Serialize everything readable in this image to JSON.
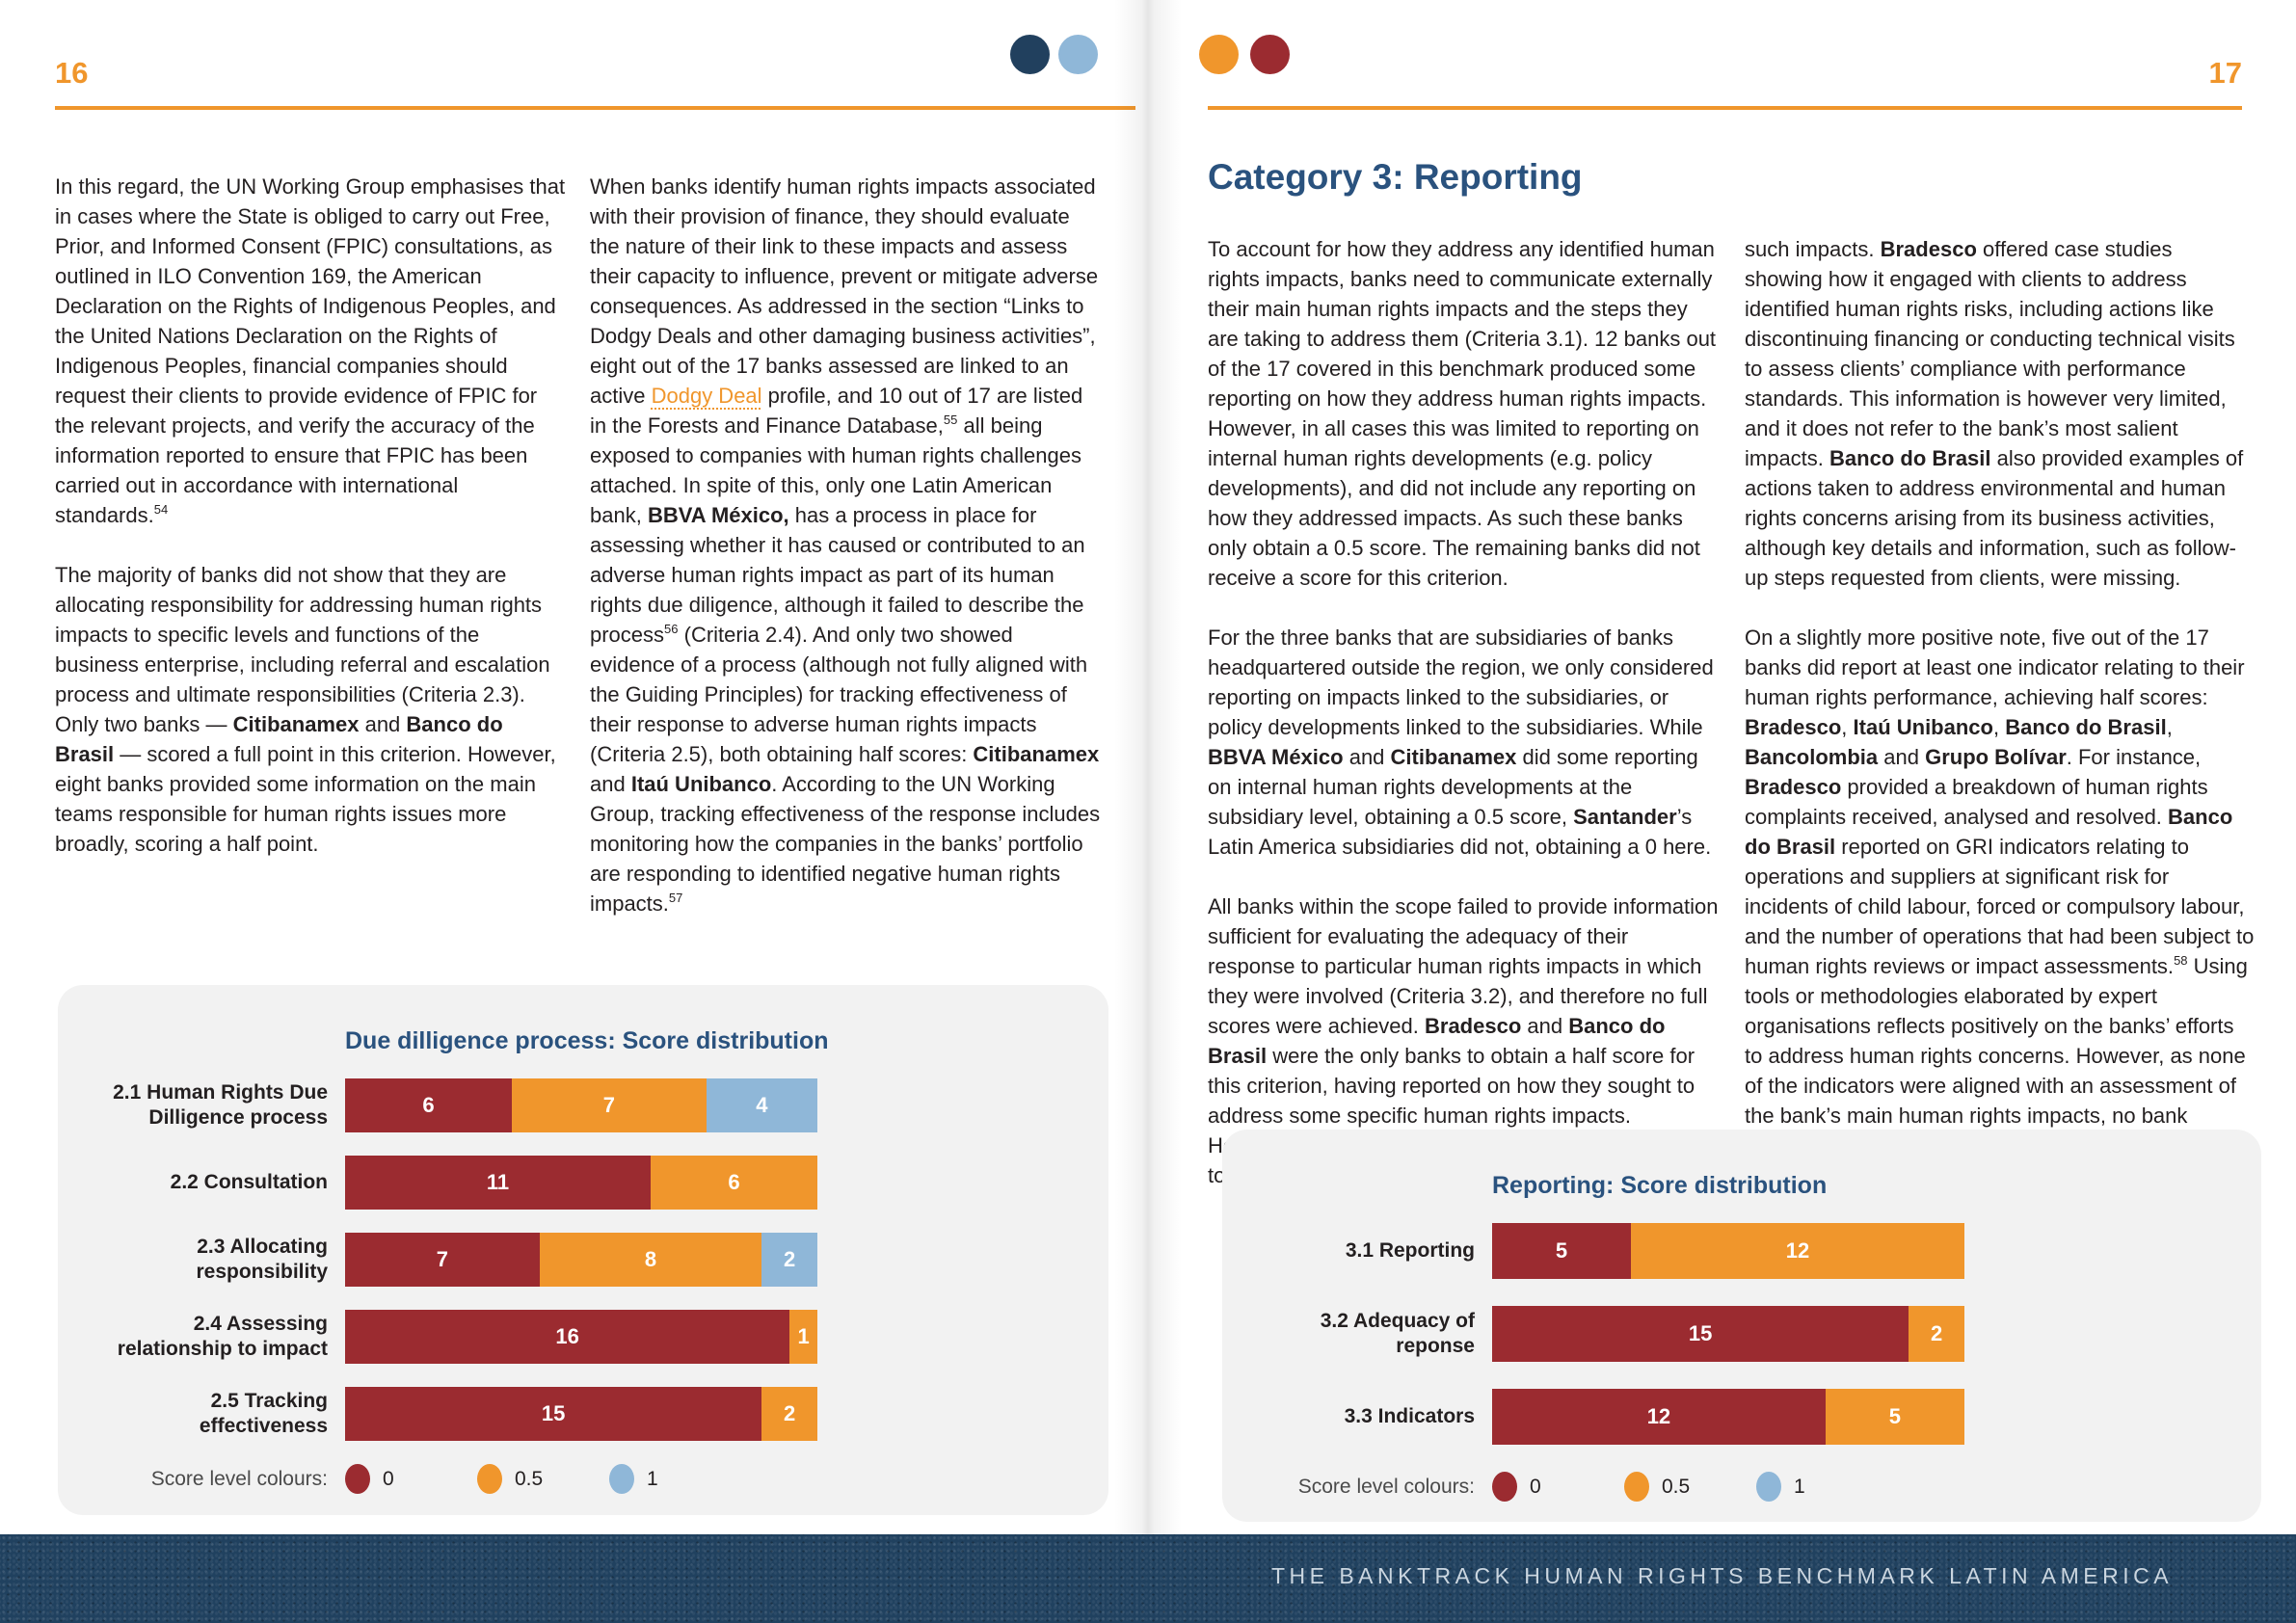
{
  "colors": {
    "accent_orange": "#F0962C",
    "heading_blue": "#2A527E",
    "footer_navy": "#20415F",
    "panel_gray": "#F2F2F2",
    "body_text": "#231F20",
    "footer_text_color": "#CBD6E0",
    "scores": {
      "0": "#9B2B30",
      "0.5": "#F0962C",
      "1": "#8FB7D8"
    },
    "dots": [
      "#21405E",
      "#8FB7D8",
      "#F0962C",
      "#9B2B30"
    ]
  },
  "footer": {
    "title": "THE BANKTRACK HUMAN RIGHTS BENCHMARK LATIN AMERICA"
  },
  "page_left": {
    "number": "16",
    "columns": [
      [
        [
          {
            "t": "In this regard, the UN Working Group emphasises that in cases where the State is obliged to carry out Free, Prior, and Informed Consent (FPIC) consultations, as outlined in ILO Convention 169, the American Declaration on the Rights of Indigenous Peoples, and the United Nations Declaration on the Rights of Indigenous Peoples, financial companies should request their clients to provide evidence of FPIC for the relevant projects, and verify the accuracy of the information reported to ensure that FPIC has been carried out in accordance with international standards."
          },
          {
            "t": "54",
            "sup": true
          }
        ],
        [
          {
            "t": "The majority of banks did not show that they are allocating responsibility for addressing human rights impacts to specific levels and functions of the business enterprise, including referral and escalation process and ultimate responsibilities (Criteria 2.3). Only two banks — "
          },
          {
            "t": "Citibanamex",
            "b": true
          },
          {
            "t": " and "
          },
          {
            "t": "Banco do Brasil",
            "b": true
          },
          {
            "t": " — scored a full point in this criterion. However, eight banks provided some information on the main teams responsible for human rights issues more broadly, scoring a half point."
          }
        ]
      ],
      [
        [
          {
            "t": "When banks identify human rights impacts associated with their provision of finance, they should evaluate the nature of their link to these impacts and assess their capacity to influence, prevent or mitigate adverse consequences. As addressed in the section “Links to Dodgy Deals and other damaging business activities”, eight out of the 17 banks assessed are linked to an active "
          },
          {
            "t": "Dodgy Deal",
            "link": true
          },
          {
            "t": " profile, and 10 out of 17 are listed in the Forests and Finance Database,"
          },
          {
            "t": "55",
            "sup": true
          },
          {
            "t": " all being exposed to companies with human rights challenges attached. In spite of this, only one Latin American bank, "
          },
          {
            "t": "BBVA México,",
            "b": true
          },
          {
            "t": " has a process in place for assessing whether it has caused or contributed to an adverse human rights impact as part of its human rights due diligence, although it failed to describe the process"
          },
          {
            "t": "56",
            "sup": true
          },
          {
            "t": " (Criteria 2.4). And only two showed evidence of a process (although not fully aligned with the Guiding Principles) for tracking effectiveness of their response to adverse human rights impacts (Criteria 2.5), both obtaining half scores: "
          },
          {
            "t": "Citibanamex",
            "b": true
          },
          {
            "t": " and "
          },
          {
            "t": "Itaú Unibanco",
            "b": true
          },
          {
            "t": ". According to the UN Working Group, tracking effectiveness of the response includes monitoring how the companies in the banks’ portfolio are responding to identified negative human rights impacts."
          },
          {
            "t": "57",
            "sup": true
          }
        ]
      ]
    ]
  },
  "page_right": {
    "number": "17",
    "heading": "Category 3: Reporting",
    "columns": [
      [
        [
          {
            "t": "To account for how they address any identified human rights impacts, banks need to communicate externally their main human rights impacts and the steps they are taking to address them (Criteria 3.1). 12 banks out of the 17 covered in this benchmark produced some reporting on how they address human rights impacts. However, in all cases this was limited to reporting on internal human rights developments (e.g. policy developments), and did not include any reporting on how they addressed impacts. As such these banks only obtain a 0.5 score. The remaining banks did not receive a score for this criterion."
          }
        ],
        [
          {
            "t": "For the three banks that are subsidiaries of banks headquartered outside the region, we only considered reporting on impacts linked to the subsidiaries, or policy developments linked to the subsidiaries. While "
          },
          {
            "t": "BBVA México",
            "b": true
          },
          {
            "t": " and "
          },
          {
            "t": "Citibanamex",
            "b": true
          },
          {
            "t": " did some reporting on internal human rights developments at the subsidiary level, obtaining a 0.5 score, "
          },
          {
            "t": "Santander",
            "b": true
          },
          {
            "t": "’s Latin America subsidiaries did not, obtaining a 0 here."
          }
        ],
        [
          {
            "t": "All banks within the scope failed to provide information sufficient for evaluating the adequacy of their response to particular human rights impacts in which they were involved (Criteria 3.2), and therefore no full scores were achieved. "
          },
          {
            "t": "Bradesco",
            "b": true
          },
          {
            "t": " and "
          },
          {
            "t": "Banco do Brasil",
            "b": true
          },
          {
            "t": " were the only banks to obtain a half score for this criterion, having reported on how they sought to address some specific human rights impacts. However, the information provided was not sufficient to assess the adequacy of their responses to"
          }
        ]
      ],
      [
        [
          {
            "t": "such impacts. "
          },
          {
            "t": "Bradesco",
            "b": true
          },
          {
            "t": " offered case studies showing how it engaged with clients to address identified human rights risks, including actions like discontinuing financing or conducting technical visits to assess clients’ compliance with performance standards. This information is however very limited, and it does not refer to the bank’s most salient impacts. "
          },
          {
            "t": "Banco do Brasil",
            "b": true
          },
          {
            "t": " also provided examples of actions taken to address environmental and human rights concerns arising from its business activities, although key details and information, such as follow-up steps requested from clients, were missing."
          }
        ],
        [
          {
            "t": "On a slightly more positive note, five out of the 17 banks did report at least one indicator relating to their human rights performance, achieving half scores: "
          },
          {
            "t": "Bradesco",
            "b": true
          },
          {
            "t": ", "
          },
          {
            "t": "Itaú Unibanco",
            "b": true
          },
          {
            "t": ", "
          },
          {
            "t": "Banco do Brasil",
            "b": true
          },
          {
            "t": ", "
          },
          {
            "t": "Bancolombia",
            "b": true
          },
          {
            "t": " and "
          },
          {
            "t": "Grupo Bolívar",
            "b": true
          },
          {
            "t": ". For instance, "
          },
          {
            "t": "Bradesco",
            "b": true
          },
          {
            "t": " provided a breakdown of human rights complaints received, analysed and resolved. "
          },
          {
            "t": "Banco do Brasil",
            "b": true
          },
          {
            "t": " reported on GRI indicators relating to operations and suppliers at significant risk for incidents of child labour, forced or compulsory labour, and the number of operations that had been subject to human rights reviews or impact assessments."
          },
          {
            "t": "58",
            "sup": true
          },
          {
            "t": " Using tools or methodologies elaborated by expert organisations reflects positively on the banks’ efforts to address human rights concerns. However, as none of the indicators were aligned with an assessment of the bank’s main human rights impacts, no bank achieved a full score in this criterion (Criteria 3.3)."
          }
        ]
      ]
    ]
  },
  "legend": {
    "label": "Score level colours:",
    "entries": [
      {
        "score": "0",
        "label": "0"
      },
      {
        "score": "0.5",
        "label": "0.5"
      },
      {
        "score": "1",
        "label": "1"
      }
    ]
  },
  "chart_data": [
    {
      "type": "bar",
      "orientation": "horizontal",
      "stacked": true,
      "title": "Due dilligence process: Score distribution",
      "max": 17,
      "legend_position": "bottom",
      "series_names": [
        "0",
        "0.5",
        "1"
      ],
      "rows": [
        {
          "label_lines": [
            "2.1 Human Rights Due",
            "Dilligence process"
          ],
          "segments": [
            {
              "score": "0",
              "value": 6
            },
            {
              "score": "0.5",
              "value": 7
            },
            {
              "score": "1",
              "value": 4
            }
          ]
        },
        {
          "label_lines": [
            "2.2 Consultation"
          ],
          "segments": [
            {
              "score": "0",
              "value": 11
            },
            {
              "score": "0.5",
              "value": 6
            },
            {
              "score": "1",
              "value": 0
            }
          ]
        },
        {
          "label_lines": [
            "2.3 Allocating",
            "responsibility"
          ],
          "segments": [
            {
              "score": "0",
              "value": 7
            },
            {
              "score": "0.5",
              "value": 8
            },
            {
              "score": "1",
              "value": 2
            }
          ]
        },
        {
          "label_lines": [
            "2.4 Assessing",
            "relationship to impact"
          ],
          "segments": [
            {
              "score": "0",
              "value": 16
            },
            {
              "score": "0.5",
              "value": 1
            },
            {
              "score": "1",
              "value": 0
            }
          ]
        },
        {
          "label_lines": [
            "2.5 Tracking",
            "effectiveness"
          ],
          "segments": [
            {
              "score": "0",
              "value": 15
            },
            {
              "score": "0.5",
              "value": 2
            },
            {
              "score": "1",
              "value": 0
            }
          ]
        }
      ]
    },
    {
      "type": "bar",
      "orientation": "horizontal",
      "stacked": true,
      "title": "Reporting: Score distribution",
      "max": 17,
      "legend_position": "bottom",
      "series_names": [
        "0",
        "0.5",
        "1"
      ],
      "rows": [
        {
          "label_lines": [
            "3.1 Reporting"
          ],
          "segments": [
            {
              "score": "0",
              "value": 5
            },
            {
              "score": "0.5",
              "value": 12
            },
            {
              "score": "1",
              "value": 0
            }
          ]
        },
        {
          "label_lines": [
            "3.2 Adequacy of",
            "reponse"
          ],
          "segments": [
            {
              "score": "0",
              "value": 15
            },
            {
              "score": "0.5",
              "value": 2
            },
            {
              "score": "1",
              "value": 0
            }
          ]
        },
        {
          "label_lines": [
            "3.3 Indicators"
          ],
          "segments": [
            {
              "score": "0",
              "value": 12
            },
            {
              "score": "0.5",
              "value": 5
            },
            {
              "score": "1",
              "value": 0
            }
          ]
        }
      ]
    }
  ]
}
